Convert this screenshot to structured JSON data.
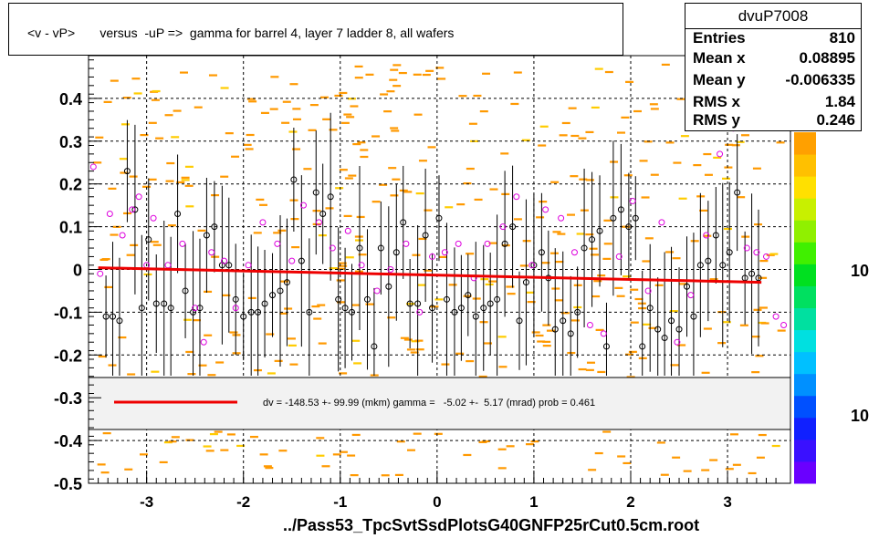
{
  "title": "<v - vP>       versus  -uP =>  gamma for barrel 4, layer 7 ladder 8, all wafers",
  "stats": {
    "name": "dvuP7008",
    "rows": [
      {
        "label": "Entries",
        "value": "810"
      },
      {
        "label": "Mean x",
        "value": "0.08895"
      },
      {
        "label": "Mean y",
        "value": "-0.006335"
      },
      {
        "label": "RMS x",
        "value": "1.84"
      },
      {
        "label": "RMS y",
        "value": "0.246"
      }
    ]
  },
  "fit_text": "dv = -148.53 +- 99.99 (mkm) gamma =   -5.02 +-  5.17 (mrad) prob = 0.461",
  "footer": "../Pass53_TpcSvtSsdPlotsG40GNFP25rCut0.5cm.root",
  "colors": {
    "fit_line": "#ee0000",
    "marker_black": "#000000",
    "marker_magenta": "#dd00dd",
    "bins": "#ff9900"
  },
  "chart_data": {
    "type": "scatter",
    "title": "<v - vP>       versus  -uP =>  gamma for barrel 4, layer 7 ladder 8, all wafers",
    "xlabel": "",
    "ylabel": "",
    "xlim": [
      -3.6,
      3.65
    ],
    "ylim": [
      -0.5,
      0.5
    ],
    "x_ticks": [
      -3,
      -2,
      -1,
      0,
      1,
      2,
      3
    ],
    "y_ticks": [
      0.4,
      0.3,
      0.2,
      0.1,
      0,
      -0.1,
      -0.2,
      -0.3,
      -0.4,
      -0.5
    ],
    "y_tick_labels": [
      "0.4",
      "0.3",
      "0.2",
      "0.1",
      "0",
      "-0.1",
      "-0.2",
      "-0.3",
      "-0.4",
      "-0.5"
    ],
    "z_axis_labels": [
      "10",
      "10"
    ],
    "grid": true,
    "fit_line": {
      "x": [
        -3.5,
        3.35
      ],
      "y": [
        0.004,
        -0.03
      ]
    },
    "series": [
      {
        "marker": "black-open-circle",
        "x": [
          -3.42,
          -3.35,
          -3.28,
          -3.2,
          -3.12,
          -3.05,
          -2.98,
          -2.9,
          -2.82,
          -2.75,
          -2.68,
          -2.6,
          -2.52,
          -2.45,
          -2.38,
          -2.3,
          -2.22,
          -2.15,
          -2.08,
          -2.0,
          -1.92,
          -1.85,
          -1.78,
          -1.7,
          -1.62,
          -1.55,
          -1.48,
          -1.4,
          -1.32,
          -1.25,
          -1.18,
          -1.1,
          -1.02,
          -0.95,
          -0.88,
          -0.8,
          -0.72,
          -0.65,
          -0.58,
          -0.5,
          -0.42,
          -0.35,
          -0.28,
          -0.2,
          -0.12,
          -0.05,
          0.02,
          0.1,
          0.18,
          0.25,
          0.32,
          0.4,
          0.48,
          0.55,
          0.62,
          0.7,
          0.78,
          0.85,
          0.92,
          1.0,
          1.08,
          1.15,
          1.22,
          1.3,
          1.38,
          1.45,
          1.52,
          1.6,
          1.68,
          1.75,
          1.82,
          1.9,
          1.98,
          2.05,
          2.12,
          2.2,
          2.28,
          2.35,
          2.42,
          2.5,
          2.58,
          2.65,
          2.72,
          2.8,
          2.88,
          2.95,
          3.02,
          3.1,
          3.18,
          3.25,
          3.32
        ],
        "y": [
          -0.11,
          -0.11,
          -0.12,
          0.23,
          0.14,
          -0.09,
          0.07,
          -0.08,
          -0.08,
          -0.09,
          0.13,
          -0.05,
          -0.1,
          -0.09,
          0.08,
          0.1,
          0.01,
          0.01,
          -0.07,
          -0.11,
          -0.1,
          -0.1,
          -0.08,
          -0.06,
          -0.05,
          -0.03,
          0.21,
          0.02,
          -0.1,
          0.18,
          0.13,
          0.17,
          -0.07,
          -0.09,
          -0.1,
          0.05,
          -0.07,
          -0.18,
          0.05,
          -0.04,
          0.04,
          0.11,
          -0.08,
          -0.08,
          0.08,
          -0.09,
          0.12,
          -0.07,
          -0.1,
          -0.09,
          -0.06,
          -0.11,
          -0.09,
          -0.08,
          -0.07,
          0.06,
          0.1,
          -0.12,
          -0.03,
          0.01,
          0.04,
          -0.02,
          -0.14,
          -0.12,
          -0.15,
          -0.1,
          0.05,
          0.07,
          0.09,
          -0.18,
          0.12,
          0.14,
          0.1,
          0.12,
          -0.18,
          -0.09,
          -0.14,
          -0.16,
          -0.12,
          -0.14,
          -0.04,
          -0.11,
          0.01,
          0.02,
          0.08,
          0.01,
          0.04,
          0.18,
          -0.02,
          -0.01,
          -0.02
        ]
      },
      {
        "marker": "magenta-open-circle",
        "x": [
          -3.55,
          -3.48,
          -3.38,
          -3.25,
          -3.15,
          -3.08,
          -3.0,
          -2.93,
          -2.78,
          -2.63,
          -2.5,
          -2.41,
          -2.33,
          -2.2,
          -2.08,
          -1.95,
          -1.8,
          -1.65,
          -1.5,
          -1.38,
          -1.22,
          -1.08,
          -0.92,
          -0.78,
          -0.62,
          -0.48,
          -0.32,
          -0.18,
          -0.05,
          0.08,
          0.22,
          0.38,
          0.52,
          0.68,
          0.82,
          0.98,
          1.12,
          1.28,
          1.42,
          1.58,
          1.72,
          1.88,
          2.02,
          2.18,
          2.32,
          2.48,
          2.62,
          2.78,
          2.92,
          3.06,
          3.2,
          3.3,
          3.4,
          3.5,
          3.58
        ],
        "y": [
          0.24,
          -0.01,
          0.13,
          0.08,
          0.14,
          0.17,
          0.01,
          0.12,
          0.01,
          0.06,
          -0.09,
          -0.17,
          0.04,
          0.02,
          -0.09,
          0.01,
          0.11,
          0.06,
          0.02,
          0.15,
          0.11,
          0.05,
          0.09,
          0.01,
          -0.05,
          0.0,
          0.06,
          -0.1,
          0.03,
          0.04,
          0.06,
          -0.02,
          0.06,
          0.1,
          0.17,
          0.01,
          0.14,
          0.12,
          0.04,
          -0.13,
          -0.15,
          0.03,
          0.16,
          -0.05,
          0.11,
          -0.17,
          -0.06,
          0.08,
          0.27,
          0.33,
          0.05,
          0.04,
          0.03,
          -0.11,
          -0.13
        ]
      }
    ]
  }
}
